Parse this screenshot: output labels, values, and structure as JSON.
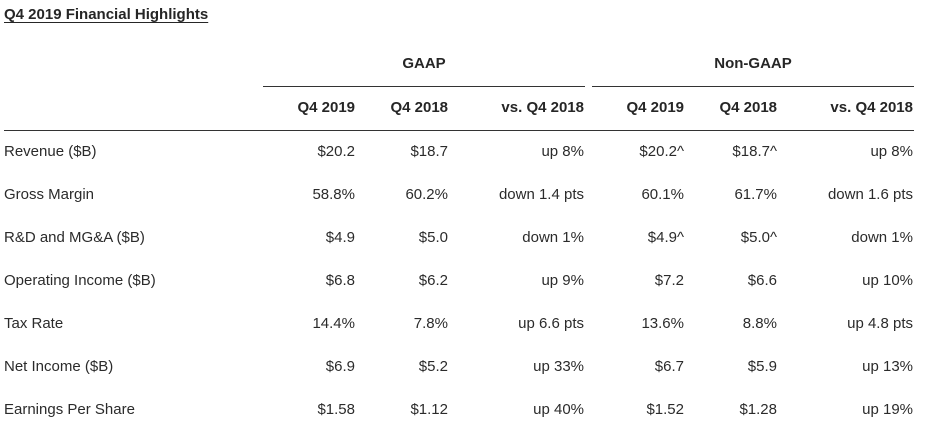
{
  "title": "Q4 2019 Financial Highlights",
  "groups": {
    "gaap": "GAAP",
    "non_gaap": "Non-GAAP"
  },
  "columns": [
    "Q4 2019",
    "Q4 2018",
    "vs. Q4 2018",
    "Q4 2019",
    "Q4 2018",
    "vs. Q4 2018"
  ],
  "rows": [
    {
      "label": "Revenue ($B)",
      "values": [
        "$20.2",
        "$18.7",
        "up 8%",
        "$20.2^",
        "$18.7^",
        "up 8%"
      ]
    },
    {
      "label": "Gross Margin",
      "values": [
        "58.8%",
        "60.2%",
        "down 1.4 pts",
        "60.1%",
        "61.7%",
        "down 1.6 pts"
      ]
    },
    {
      "label": "R&D and MG&A ($B)",
      "values": [
        "$4.9",
        "$5.0",
        "down 1%",
        "$4.9^",
        "$5.0^",
        "down 1%"
      ]
    },
    {
      "label": "Operating Income ($B)",
      "values": [
        "$6.8",
        "$6.2",
        "up 9%",
        "$7.2",
        "$6.6",
        "up 10%"
      ]
    },
    {
      "label": "Tax Rate",
      "values": [
        "14.4%",
        "7.8%",
        "up 6.6 pts",
        "13.6%",
        "8.8%",
        "up 4.8 pts"
      ]
    },
    {
      "label": "Net Income ($B)",
      "values": [
        "$6.9",
        "$5.2",
        "up 33%",
        "$6.7",
        "$5.9",
        "up 13%"
      ]
    },
    {
      "label": "Earnings Per Share",
      "values": [
        "$1.58",
        "$1.12",
        "up 40%",
        "$1.52",
        "$1.28",
        "up 19%"
      ]
    }
  ]
}
